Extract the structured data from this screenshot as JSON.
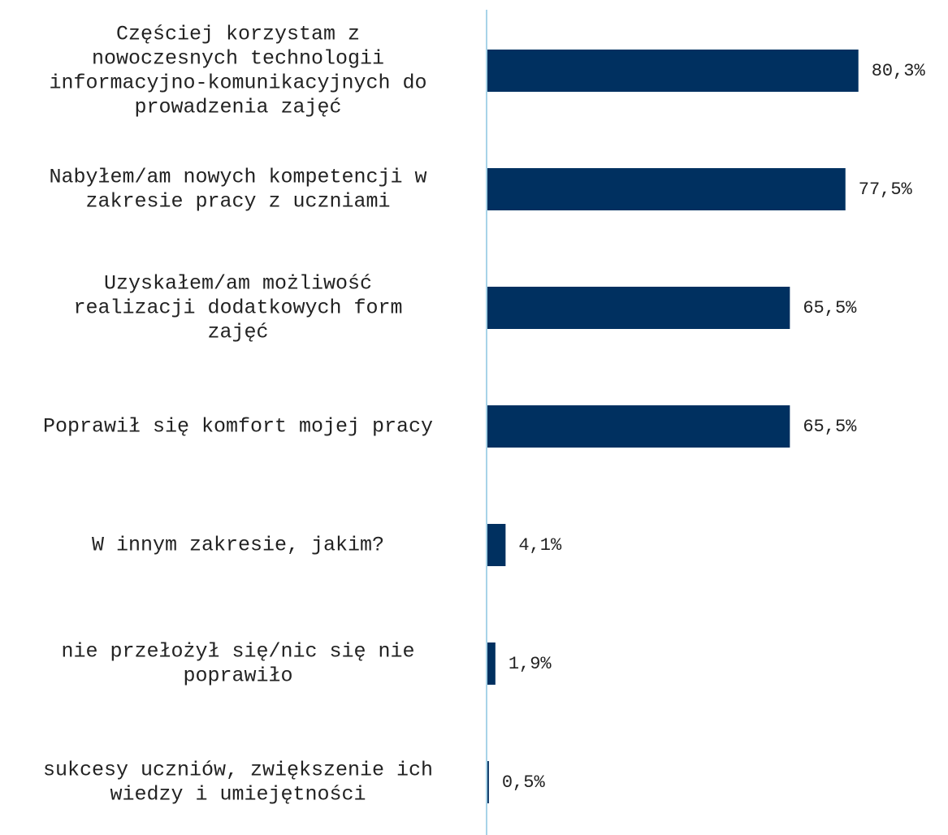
{
  "chart_data": {
    "type": "bar",
    "orientation": "horizontal",
    "categories": [
      "Częściej korzystam z nowoczesnych technologii informacyjno-komunikacyjnych do prowadzenia zajęć",
      "Nabyłem/am nowych kompetencji w zakresie pracy z uczniami",
      "Uzyskałem/am możliwość realizacji dodatkowych form zajęć",
      "Poprawił się komfort mojej pracy",
      "W innym zakresie, jakim?",
      "nie przełożył się/nic się nie poprawiło",
      "sukcesy uczniów, zwiększenie ich wiedzy i umiejętności"
    ],
    "category_lines": [
      [
        "Częściej korzystam z",
        "nowoczesnych technologii",
        "informacyjno-komunikacyjnych do",
        "prowadzenia zajęć"
      ],
      [
        "Nabyłem/am nowych kompetencji w",
        "zakresie pracy z uczniami"
      ],
      [
        "Uzyskałem/am możliwość",
        "realizacji dodatkowych form",
        "zajęć"
      ],
      [
        "Poprawił się komfort mojej pracy"
      ],
      [
        "W innym zakresie, jakim?"
      ],
      [
        "nie przełożył się/nic się nie",
        "poprawiło"
      ],
      [
        "sukcesy uczniów, zwiększenie ich",
        "wiedzy i umiejętności"
      ]
    ],
    "values": [
      80.3,
      77.5,
      65.5,
      65.5,
      4.1,
      1.9,
      0.5
    ],
    "value_labels": [
      "80,3%",
      "77,5%",
      "65,5%",
      "65,5%",
      "4,1%",
      "1,9%",
      "0,5%"
    ],
    "xlim": [
      0,
      100
    ],
    "grid": false,
    "legend": "none",
    "bar_color": "#003060",
    "axis_color": "#a8d3e8"
  }
}
